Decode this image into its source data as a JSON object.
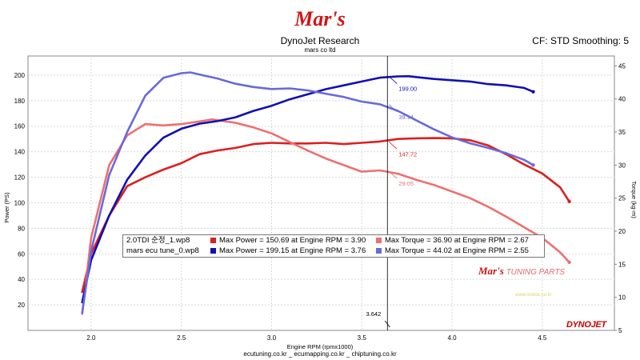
{
  "header": {
    "logo_text": "Mar's",
    "title": "DynoJet Research",
    "subtitle": "mars co ltd",
    "correction": "CF: STD Smoothing: 5"
  },
  "footer": "ecutuning.co.kr _ ecumapping.co.kr _ chiptuning.co.kr",
  "watermark": {
    "brand": "Mar's",
    "tagline": "TUNING PARTS",
    "url": "www.motoe.co.kr",
    "maker": "DYNOJET"
  },
  "legend": [
    {
      "file": "2.0TDI 순정_1.wp8",
      "power_color": "#dd1f1f",
      "torque_color": "#ee6f6f",
      "power_text": "Max Power = 150.69 at Engine RPM = 3.90",
      "torque_text": "Max Torque = 36.90 at Engine RPM = 2.67"
    },
    {
      "file": "mars ecu tune_0.wp8",
      "power_color": "#1010b4",
      "torque_color": "#6a6ad8",
      "power_text": "Max Power = 199.15 at Engine RPM = 3.76",
      "torque_text": "Max Torque = 44.02 at Engine RPM = 2.55"
    }
  ],
  "chart_data": {
    "type": "line",
    "xlabel": "Engine RPM (rpmx1000)",
    "ylabel_left": "Power (PS)",
    "ylabel_right": "Torque (kg-m)",
    "xlim": [
      1.65,
      4.9
    ],
    "ylim_left": [
      0,
      215
    ],
    "ylim_right": [
      5,
      46.5
    ],
    "x_ticks": [
      "2.0",
      "2.5",
      "3.0",
      "3.5",
      "4.0",
      "4.5"
    ],
    "y_ticks_left": [
      "20",
      "40",
      "60",
      "80",
      "100",
      "120",
      "140",
      "160",
      "180",
      "200"
    ],
    "y_ticks_right": [
      "5",
      "10",
      "15",
      "20",
      "25",
      "30",
      "35",
      "40",
      "45"
    ],
    "grid": true,
    "cursor": {
      "x": 3.642,
      "label": "3.642"
    },
    "series": [
      {
        "name": "2.0TDI 순정_1.wp8",
        "metric": "Power (PS)",
        "axis": "left",
        "color": "#dd1f1f",
        "x": [
          1.95,
          2.0,
          2.1,
          2.2,
          2.3,
          2.4,
          2.5,
          2.6,
          2.7,
          2.8,
          2.9,
          3.0,
          3.1,
          3.2,
          3.3,
          3.4,
          3.5,
          3.6,
          3.7,
          3.8,
          3.9,
          4.0,
          4.1,
          4.2,
          4.3,
          4.4,
          4.5,
          4.6,
          4.65
        ],
        "y": [
          30,
          60,
          90,
          113,
          120,
          126,
          131,
          138,
          141,
          143,
          146,
          147,
          146.5,
          146.5,
          147,
          146,
          147,
          148,
          150,
          150.5,
          150.7,
          150.5,
          149,
          145,
          138,
          130,
          123,
          112,
          101
        ]
      },
      {
        "name": "2.0TDI 순정_1.wp8",
        "metric": "Torque (kg-m)",
        "axis": "right",
        "color": "#ee6f6f",
        "x": [
          1.95,
          2.0,
          2.1,
          2.2,
          2.3,
          2.4,
          2.5,
          2.6,
          2.67,
          2.8,
          2.9,
          3.0,
          3.1,
          3.2,
          3.3,
          3.4,
          3.5,
          3.6,
          3.7,
          3.8,
          3.9,
          4.0,
          4.1,
          4.2,
          4.3,
          4.4,
          4.5,
          4.6,
          4.65
        ],
        "y": [
          7.5,
          19,
          30,
          34.5,
          36.2,
          36.0,
          36.2,
          36.6,
          36.9,
          36.4,
          35.7,
          34.8,
          33.5,
          32.2,
          31.0,
          30.0,
          29.0,
          29.2,
          28.7,
          27.8,
          27.0,
          26.0,
          25.0,
          23.7,
          22.2,
          20.6,
          19.0,
          16.8,
          15.3
        ]
      },
      {
        "name": "mars ecu tune_0.wp8",
        "metric": "Power (PS)",
        "axis": "left",
        "color": "#1010b4",
        "x": [
          1.95,
          2.0,
          2.1,
          2.2,
          2.3,
          2.4,
          2.5,
          2.6,
          2.7,
          2.8,
          2.9,
          3.0,
          3.1,
          3.2,
          3.3,
          3.4,
          3.5,
          3.6,
          3.7,
          3.76,
          3.8,
          3.9,
          4.0,
          4.1,
          4.2,
          4.3,
          4.4,
          4.45
        ],
        "y": [
          22,
          55,
          90,
          118,
          137,
          151,
          158,
          162,
          164,
          167,
          172,
          176,
          181,
          185,
          189,
          192,
          195,
          198,
          199,
          199.15,
          198.5,
          197,
          196,
          195,
          193,
          192,
          190,
          187
        ]
      },
      {
        "name": "mars ecu tune_0.wp8",
        "metric": "Torque (kg-m)",
        "axis": "right",
        "color": "#6a6ad8",
        "x": [
          1.95,
          2.0,
          2.1,
          2.2,
          2.3,
          2.4,
          2.5,
          2.55,
          2.6,
          2.7,
          2.8,
          2.9,
          3.0,
          3.1,
          3.2,
          3.3,
          3.4,
          3.5,
          3.6,
          3.7,
          3.8,
          3.9,
          4.0,
          4.1,
          4.2,
          4.3,
          4.4,
          4.45
        ],
        "y": [
          7.6,
          17,
          28.5,
          35,
          40.5,
          43.2,
          43.9,
          44.02,
          43.7,
          43.1,
          42.3,
          41.8,
          41.5,
          41.6,
          41.3,
          40.8,
          40.3,
          39.6,
          39.2,
          38.2,
          36.8,
          35.4,
          34.2,
          33.3,
          32.6,
          31.8,
          30.8,
          30.0
        ]
      }
    ],
    "cursor_labels": [
      {
        "text": "199.00",
        "value": 199.0,
        "axis": "left",
        "color": "#1010b4"
      },
      {
        "text": "39.14",
        "value": 39.14,
        "axis": "right",
        "color": "#6a6ad8"
      },
      {
        "text": "147.72",
        "value": 147.72,
        "axis": "left",
        "color": "#dd1f1f"
      },
      {
        "text": "29.05",
        "value": 29.05,
        "axis": "right",
        "color": "#ee6f6f"
      }
    ]
  }
}
